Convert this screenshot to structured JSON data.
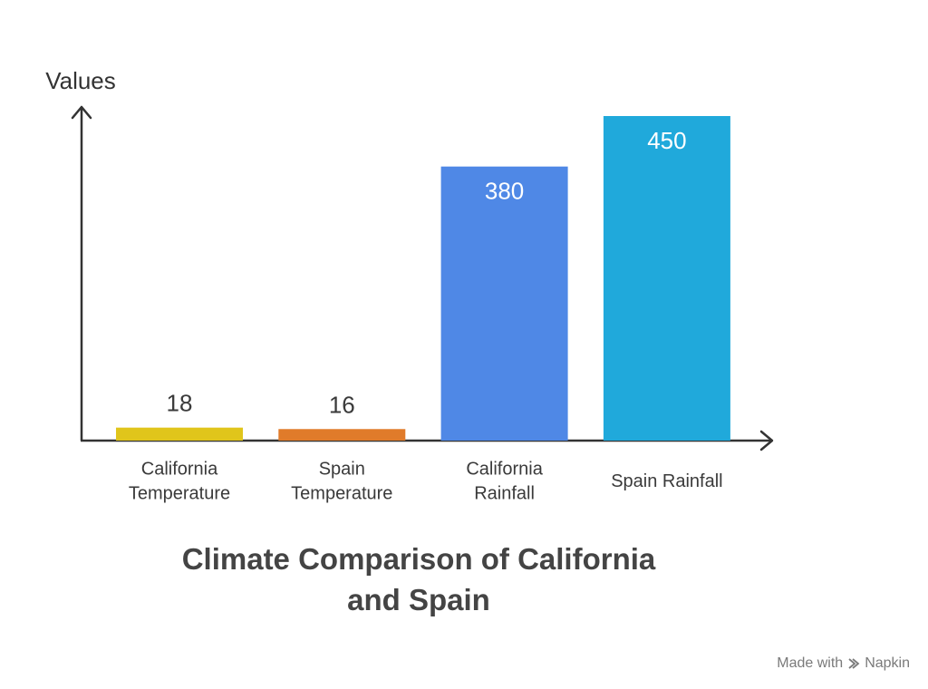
{
  "chart_data": {
    "type": "bar",
    "title": "Climate Comparison of California and Spain",
    "title_lines": [
      "Climate Comparison of California",
      "and Spain"
    ],
    "ylabel": "Values",
    "xlabel": "",
    "categories": [
      [
        "California",
        "Temperature"
      ],
      [
        "Spain",
        "Temperature"
      ],
      [
        "California",
        "Rainfall"
      ],
      [
        "Spain Rainfall"
      ]
    ],
    "values": [
      18,
      16,
      380,
      450
    ],
    "value_labels": [
      "18",
      "16",
      "380",
      "450"
    ],
    "colors": [
      "#E0C51B",
      "#E07B2A",
      "#4F88E6",
      "#20A9DB"
    ],
    "label_colors": [
      "#3a3a3a",
      "#3a3a3a",
      "#ffffff",
      "#ffffff"
    ],
    "ylim": [
      0,
      470
    ],
    "grid": false,
    "legend": "none"
  },
  "watermark": {
    "prefix": "Made with",
    "brand": "Napkin"
  }
}
